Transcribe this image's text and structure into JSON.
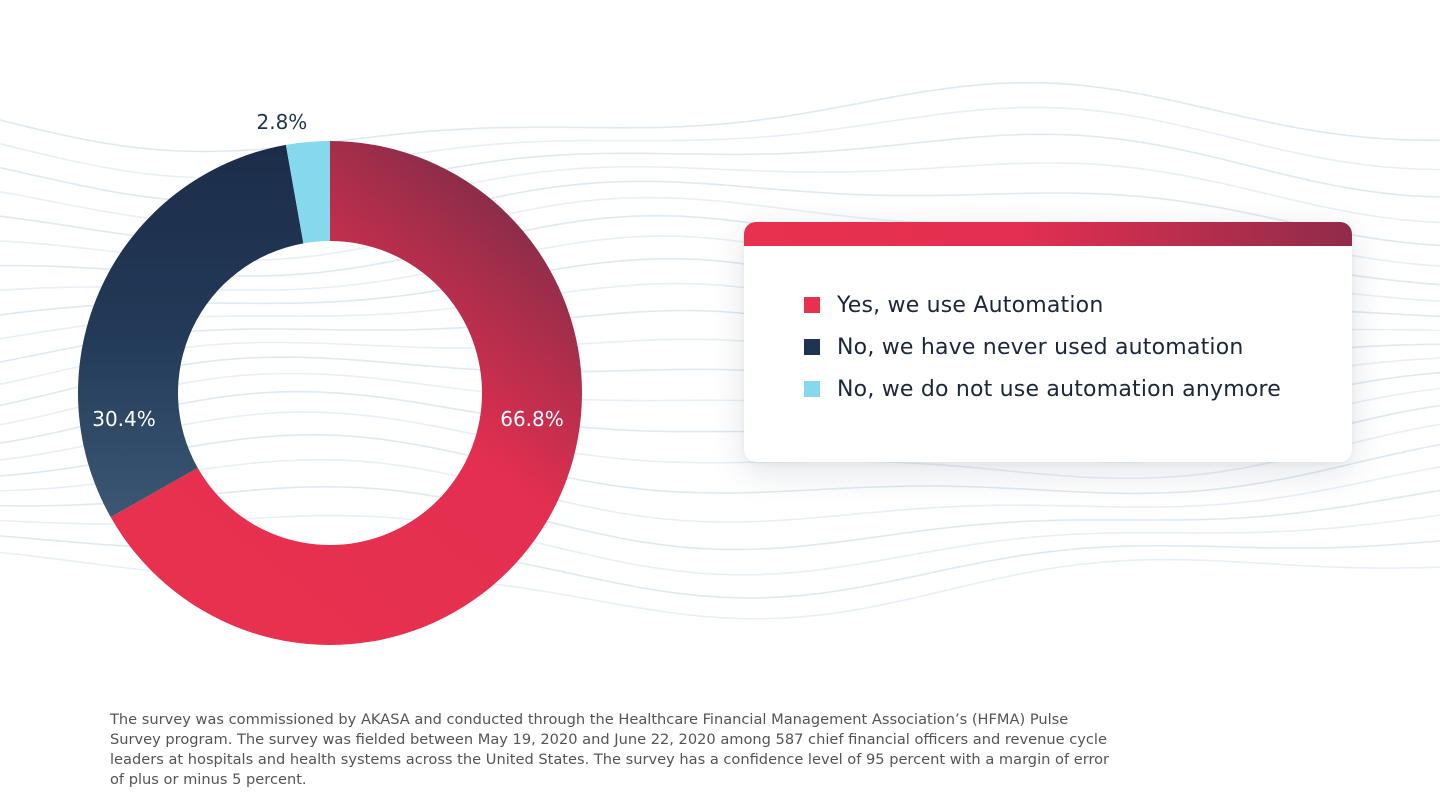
{
  "chart_data": {
    "type": "pie",
    "variant": "donut",
    "categories": [
      "Yes, we use Automation",
      "No, we have never used automation",
      "No, we do not use automation anymore"
    ],
    "values": [
      66.8,
      30.4,
      2.8
    ],
    "labels": [
      "66.8%",
      "30.4%",
      "2.8%"
    ],
    "colors": [
      "#e8304f",
      "#1f3451",
      "#86d9ec"
    ],
    "title": "",
    "legend": "right"
  },
  "legend": {
    "items": [
      {
        "label": "Yes, we use Automation",
        "color": "#e8304f"
      },
      {
        "label": "No, we have never used automation",
        "color": "#1f3451"
      },
      {
        "label": "No, we do not use automation anymore",
        "color": "#86d9ec"
      }
    ]
  },
  "footnote": "The survey was commissioned by AKASA and conducted through the Healthcare Financial Management Association’s (HFMA) Pulse Survey program. The survey was fielded between May 19, 2020 and June 22, 2020 among 587 chief financial officers and revenue cycle leaders at hospitals and health systems across the United States. The survey has a confidence level of 95 percent with a margin of error of plus or minus 5 percent."
}
